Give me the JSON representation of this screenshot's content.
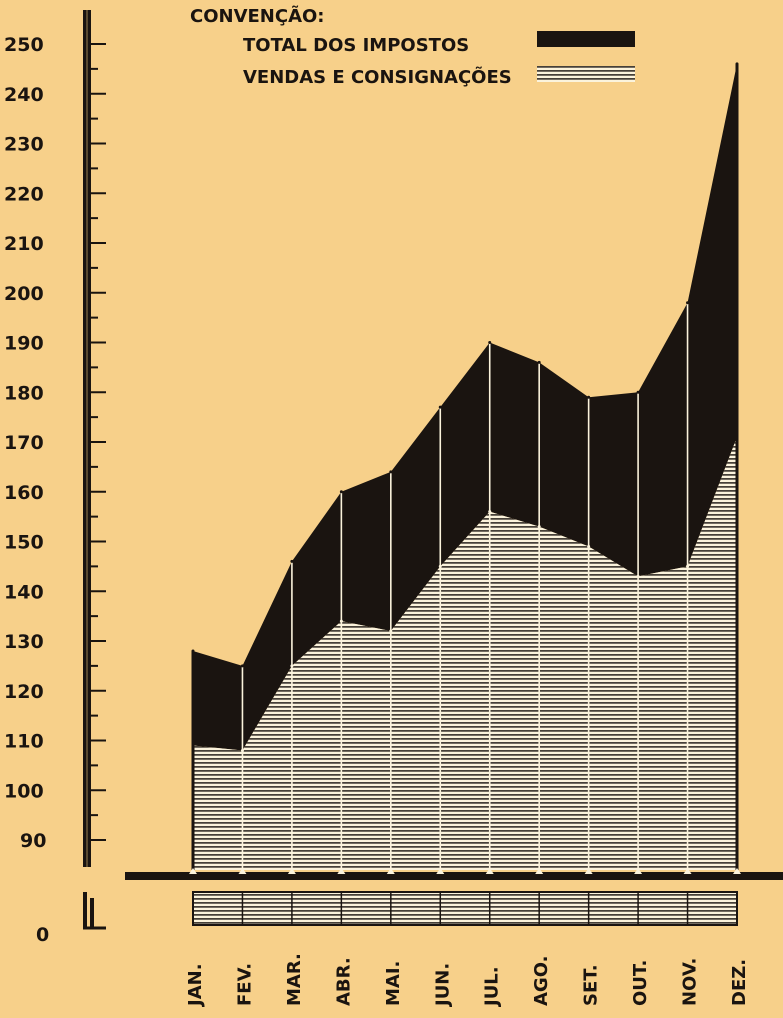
{
  "legend": {
    "heading": "CONVENÇÃO:",
    "items": [
      {
        "label": "TOTAL DOS IMPOSTOS",
        "swatch": "solid"
      },
      {
        "label": "VENDAS E CONSIGNAÇÕES",
        "swatch": "hatched"
      }
    ]
  },
  "colors": {
    "background": "#f7d08a",
    "ink": "#1a1410",
    "hatch_light": "#fbf3dc"
  },
  "chart_data": {
    "type": "area",
    "title": "",
    "xlabel": "",
    "ylabel": "",
    "ylim": [
      0,
      250
    ],
    "axis_break": "between 0 and 90",
    "y_ticks": [
      0,
      90,
      100,
      110,
      120,
      130,
      140,
      150,
      160,
      170,
      180,
      190,
      200,
      210,
      220,
      230,
      240,
      250
    ],
    "grid": false,
    "legend_position": "top",
    "categories": [
      "JAN.",
      "FEV.",
      "MAR.",
      "ABR.",
      "MAI.",
      "JUN.",
      "JUL.",
      "AGO.",
      "SET.",
      "OUT.",
      "NOV.",
      "DEZ."
    ],
    "series": [
      {
        "name": "TOTAL DOS IMPOSTOS",
        "style": "solid",
        "values": [
          128,
          125,
          146,
          160,
          164,
          177,
          190,
          186,
          179,
          180,
          198,
          246
        ]
      },
      {
        "name": "VENDAS E CONSIGNAÇÕES",
        "style": "hatched",
        "values": [
          109,
          108,
          125,
          134,
          132,
          145,
          156,
          153,
          149,
          143,
          145,
          171
        ]
      }
    ]
  }
}
